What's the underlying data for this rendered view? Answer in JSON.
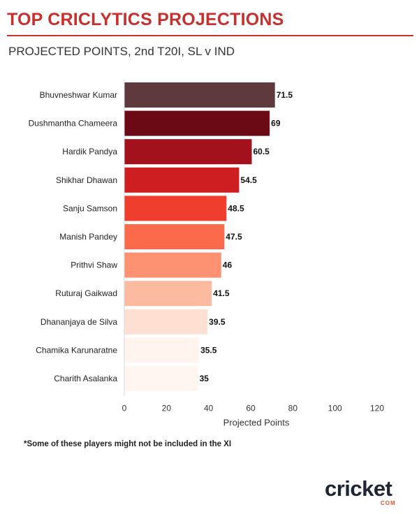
{
  "header": {
    "title": "TOP CRICLYTICS PROJECTIONS",
    "subtitle": "PROJECTED POINTS, 2nd T20I, SL v IND"
  },
  "footnote": "*Some of these players might not be included in the XI",
  "logo": {
    "text": "cricket",
    "suffix": "COM",
    "accent": "#e8542b"
  },
  "chart_data": {
    "type": "bar",
    "orientation": "horizontal",
    "categories": [
      "Bhuvneshwar Kumar",
      "Dushmantha Chameera",
      "Hardik Pandya",
      "Shikhar Dhawan",
      "Sanju Samson",
      "Manish Pandey",
      "Prithvi Shaw",
      "Ruturaj Gaikwad",
      "Dhananjaya de Silva",
      "Chamika Karunaratne",
      "Charith Asalanka"
    ],
    "values": [
      71.5,
      69,
      60.5,
      54.5,
      48.5,
      47.5,
      46,
      41.5,
      39.5,
      35.5,
      35
    ],
    "value_labels": [
      "71.5",
      "69",
      "60.5",
      "54.5",
      "48.5",
      "47.5",
      "46",
      "41.5",
      "39.5",
      "35.5",
      "35"
    ],
    "colors": [
      "#5e3a3e",
      "#6b0a14",
      "#a3121c",
      "#cf1e22",
      "#ef3d2e",
      "#fb6a4a",
      "#fc9272",
      "#fcbba1",
      "#fee0d2",
      "#fff4ee",
      "#fff6f1"
    ],
    "xlabel": "Projected Points",
    "ylabel": "",
    "xlim": [
      0,
      120
    ],
    "xticks": [
      0,
      20,
      40,
      60,
      80,
      100,
      120
    ],
    "xtick_labels": [
      "0",
      "20",
      "40",
      "60",
      "80",
      "100",
      "120"
    ],
    "grid": false,
    "legend": "none"
  }
}
